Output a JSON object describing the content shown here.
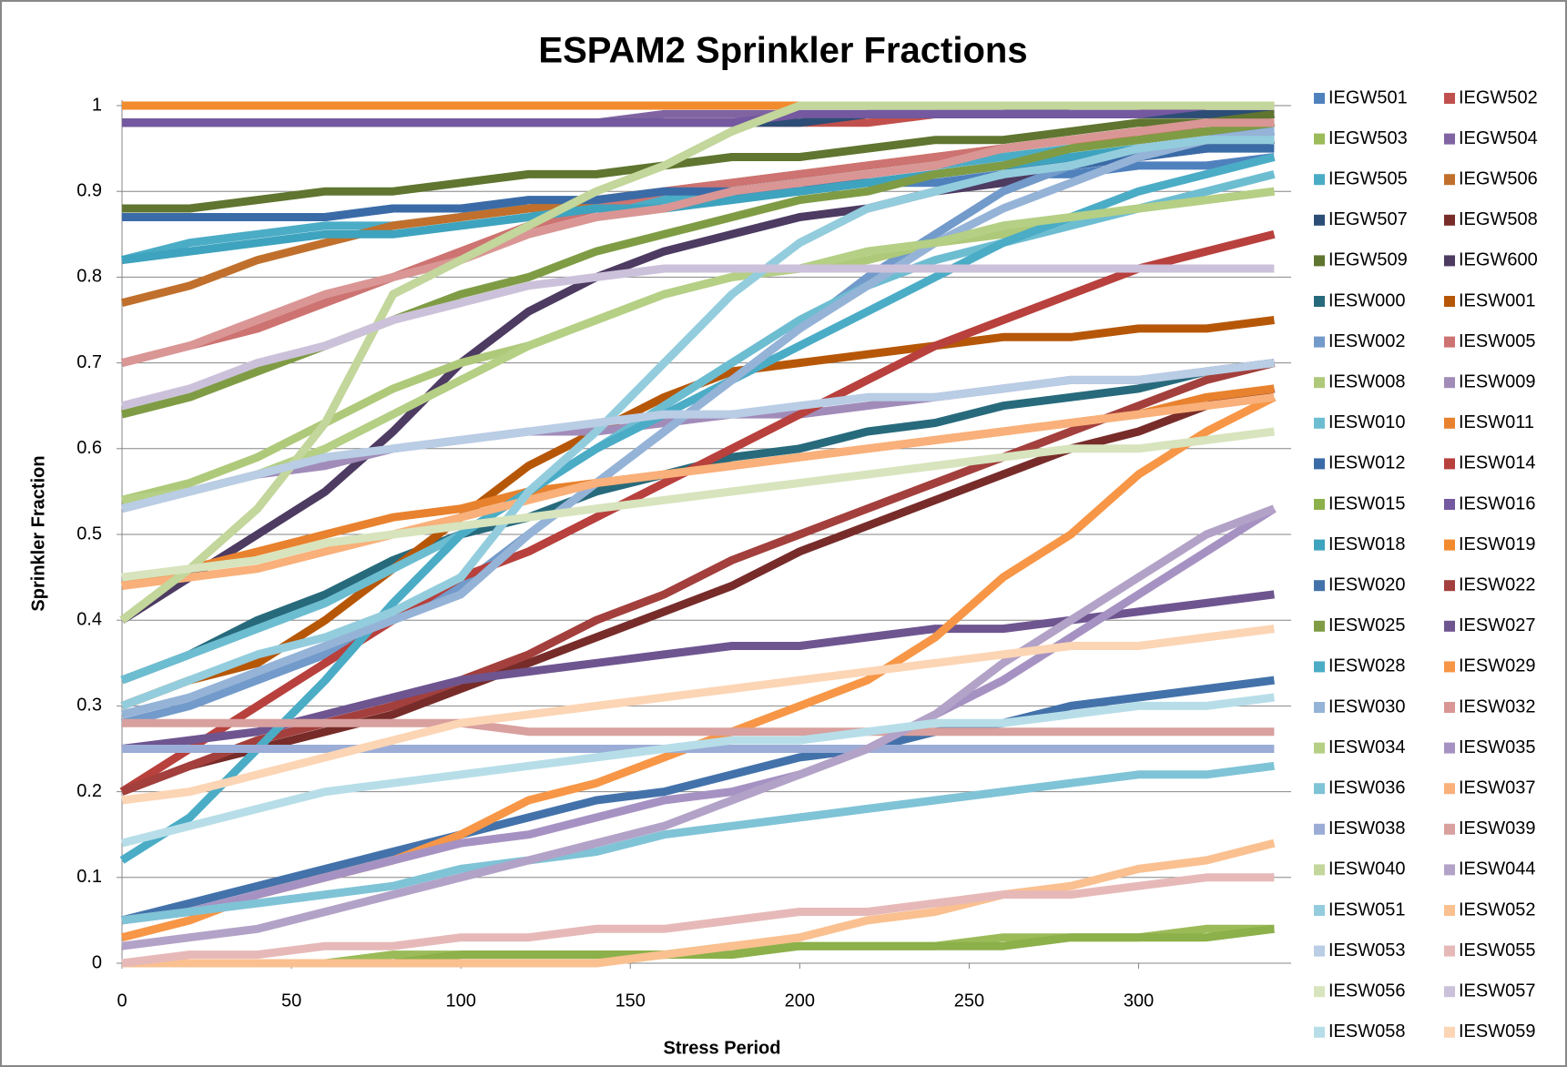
{
  "chart_data": {
    "type": "line",
    "title": "ESPAM2 Sprinkler Fractions",
    "x_label": "Stress Period",
    "y_label": "Sprinkler Fraction",
    "x": [
      0,
      20,
      40,
      60,
      80,
      100,
      120,
      140,
      160,
      180,
      200,
      220,
      240,
      260,
      280,
      300,
      320,
      340
    ],
    "xlim": [
      0,
      345
    ],
    "xticks": [
      0,
      50,
      100,
      150,
      200,
      250,
      300
    ],
    "ylim": [
      0,
      1
    ],
    "yticks": [
      0,
      0.1,
      0.2,
      0.3,
      0.4,
      0.5,
      0.6,
      0.7,
      0.8,
      0.9,
      1
    ],
    "grid": true,
    "legend": "right",
    "series": [
      {
        "name": "IEGW501",
        "color": "#4F81BD",
        "values": [
          0.87,
          0.87,
          0.87,
          0.87,
          0.88,
          0.88,
          0.88,
          0.89,
          0.89,
          0.9,
          0.9,
          0.91,
          0.91,
          0.92,
          0.92,
          0.93,
          0.93,
          0.94
        ]
      },
      {
        "name": "IEGW502",
        "color": "#C0504D",
        "values": [
          0.98,
          0.98,
          0.98,
          0.98,
          0.98,
          0.98,
          0.98,
          0.98,
          0.98,
          0.98,
          0.98,
          0.98,
          0.99,
          0.99,
          0.99,
          0.99,
          0.99,
          0.99
        ]
      },
      {
        "name": "IEGW503",
        "color": "#9BBB59",
        "values": [
          0,
          0,
          0,
          0,
          0.01,
          0.01,
          0.01,
          0.01,
          0.01,
          0.02,
          0.02,
          0.02,
          0.02,
          0.03,
          0.03,
          0.03,
          0.04,
          0.04
        ]
      },
      {
        "name": "IEGW504",
        "color": "#8064A2",
        "values": [
          0.98,
          0.98,
          0.98,
          0.98,
          0.98,
          0.98,
          0.98,
          0.98,
          0.99,
          0.99,
          0.99,
          0.99,
          0.99,
          0.99,
          1,
          1,
          1,
          1
        ]
      },
      {
        "name": "IEGW505",
        "color": "#4BACC6",
        "values": [
          0.82,
          0.84,
          0.85,
          0.86,
          0.86,
          0.87,
          0.88,
          0.88,
          0.89,
          0.9,
          0.91,
          0.92,
          0.93,
          0.94,
          0.95,
          0.96,
          0.97,
          0.97
        ]
      },
      {
        "name": "IEGW506",
        "color": "#C0702C",
        "values": [
          0.77,
          0.79,
          0.82,
          0.84,
          0.86,
          0.87,
          0.88,
          0.89,
          0.9,
          0.91,
          0.92,
          0.93,
          0.94,
          0.95,
          0.96,
          0.96,
          0.97,
          0.98
        ]
      },
      {
        "name": "IEGW507",
        "color": "#2C4D75",
        "values": [
          0.98,
          0.98,
          0.98,
          0.98,
          0.98,
          0.98,
          0.98,
          0.98,
          0.98,
          0.98,
          0.98,
          0.99,
          0.99,
          0.99,
          0.99,
          0.99,
          0.99,
          0.99
        ]
      },
      {
        "name": "IEGW508",
        "color": "#772C2A",
        "values": [
          0.2,
          0.23,
          0.25,
          0.27,
          0.29,
          0.32,
          0.35,
          0.38,
          0.41,
          0.44,
          0.48,
          0.51,
          0.54,
          0.57,
          0.6,
          0.62,
          0.65,
          0.67
        ]
      },
      {
        "name": "IEGW509",
        "color": "#5F7530",
        "values": [
          0.88,
          0.88,
          0.89,
          0.9,
          0.9,
          0.91,
          0.92,
          0.92,
          0.93,
          0.94,
          0.94,
          0.95,
          0.96,
          0.96,
          0.97,
          0.98,
          0.98,
          0.99
        ]
      },
      {
        "name": "IEGW600",
        "color": "#4D3B62",
        "values": [
          0.4,
          0.45,
          0.5,
          0.55,
          0.62,
          0.7,
          0.76,
          0.8,
          0.83,
          0.85,
          0.87,
          0.88,
          0.9,
          0.91,
          0.93,
          0.94,
          0.95,
          0.96
        ]
      },
      {
        "name": "IESW000",
        "color": "#276A7C",
        "values": [
          0.33,
          0.36,
          0.4,
          0.43,
          0.47,
          0.5,
          0.52,
          0.55,
          0.57,
          0.59,
          0.6,
          0.62,
          0.63,
          0.65,
          0.66,
          0.67,
          0.69,
          0.7
        ]
      },
      {
        "name": "IESW001",
        "color": "#B65708",
        "values": [
          0.3,
          0.33,
          0.35,
          0.4,
          0.46,
          0.52,
          0.58,
          0.62,
          0.66,
          0.69,
          0.7,
          0.71,
          0.72,
          0.73,
          0.73,
          0.74,
          0.74,
          0.75
        ]
      },
      {
        "name": "IESW002",
        "color": "#729ACA",
        "values": [
          0.28,
          0.3,
          0.33,
          0.36,
          0.4,
          0.44,
          0.5,
          0.56,
          0.62,
          0.68,
          0.74,
          0.8,
          0.85,
          0.9,
          0.93,
          0.95,
          0.96,
          0.97
        ]
      },
      {
        "name": "IESW005",
        "color": "#CD7371",
        "values": [
          0.7,
          0.72,
          0.74,
          0.77,
          0.8,
          0.83,
          0.86,
          0.88,
          0.9,
          0.91,
          0.92,
          0.93,
          0.94,
          0.95,
          0.96,
          0.97,
          0.97,
          0.98
        ]
      },
      {
        "name": "IESW008",
        "color": "#AFC97A",
        "values": [
          0.54,
          0.56,
          0.59,
          0.63,
          0.67,
          0.7,
          0.72,
          0.75,
          0.78,
          0.8,
          0.81,
          0.82,
          0.84,
          0.85,
          0.87,
          0.88,
          0.89,
          0.9
        ]
      },
      {
        "name": "IESW009",
        "color": "#A18CB9",
        "values": [
          0.53,
          0.55,
          0.57,
          0.58,
          0.6,
          0.61,
          0.62,
          0.62,
          0.63,
          0.64,
          0.64,
          0.65,
          0.66,
          0.67,
          0.68,
          0.68,
          0.69,
          0.7
        ]
      },
      {
        "name": "IESW010",
        "color": "#6DBDD1",
        "values": [
          0.33,
          0.36,
          0.39,
          0.42,
          0.46,
          0.5,
          0.55,
          0.6,
          0.65,
          0.7,
          0.75,
          0.79,
          0.82,
          0.84,
          0.86,
          0.88,
          0.9,
          0.92
        ]
      },
      {
        "name": "IESW011",
        "color": "#E8822E",
        "values": [
          0.44,
          0.46,
          0.48,
          0.5,
          0.52,
          0.53,
          0.55,
          0.56,
          0.57,
          0.58,
          0.59,
          0.6,
          0.61,
          0.62,
          0.63,
          0.64,
          0.66,
          0.67
        ]
      },
      {
        "name": "IESW012",
        "color": "#3A6BA7",
        "values": [
          0.87,
          0.87,
          0.87,
          0.87,
          0.88,
          0.88,
          0.89,
          0.89,
          0.9,
          0.9,
          0.91,
          0.91,
          0.92,
          0.93,
          0.93,
          0.94,
          0.95,
          0.95
        ]
      },
      {
        "name": "IESW014",
        "color": "#B8403D",
        "values": [
          0.2,
          0.25,
          0.3,
          0.35,
          0.4,
          0.45,
          0.48,
          0.52,
          0.56,
          0.6,
          0.64,
          0.68,
          0.72,
          0.75,
          0.78,
          0.81,
          0.83,
          0.85
        ]
      },
      {
        "name": "IESW015",
        "color": "#8CB04A",
        "values": [
          0,
          0,
          0,
          0,
          0,
          0.01,
          0.01,
          0.01,
          0.01,
          0.01,
          0.02,
          0.02,
          0.02,
          0.02,
          0.03,
          0.03,
          0.03,
          0.04
        ]
      },
      {
        "name": "IESW016",
        "color": "#7458A0",
        "values": [
          0.98,
          0.98,
          0.98,
          0.98,
          0.98,
          0.98,
          0.98,
          0.98,
          0.98,
          0.98,
          0.99,
          0.99,
          0.99,
          0.99,
          0.99,
          0.99,
          1,
          1
        ]
      },
      {
        "name": "IESW018",
        "color": "#3EA3BE",
        "values": [
          0.82,
          0.83,
          0.84,
          0.85,
          0.85,
          0.86,
          0.87,
          0.88,
          0.88,
          0.89,
          0.9,
          0.91,
          0.92,
          0.93,
          0.94,
          0.95,
          0.96,
          0.96
        ]
      },
      {
        "name": "IESW019",
        "color": "#F28A2E",
        "values": [
          1,
          1,
          1,
          1,
          1,
          1,
          1,
          1,
          1,
          1,
          1,
          1,
          1,
          1,
          1,
          1,
          1,
          1
        ]
      },
      {
        "name": "IESW020",
        "color": "#4372AA",
        "values": [
          0.05,
          0.07,
          0.09,
          0.11,
          0.13,
          0.15,
          0.17,
          0.19,
          0.2,
          0.22,
          0.24,
          0.25,
          0.27,
          0.28,
          0.3,
          0.31,
          0.32,
          0.33
        ]
      },
      {
        "name": "IESW022",
        "color": "#A33F3C",
        "values": [
          0.2,
          0.23,
          0.26,
          0.28,
          0.3,
          0.33,
          0.36,
          0.4,
          0.43,
          0.47,
          0.5,
          0.53,
          0.56,
          0.59,
          0.62,
          0.65,
          0.68,
          0.7
        ]
      },
      {
        "name": "IESW025",
        "color": "#7F9C45",
        "values": [
          0.64,
          0.66,
          0.69,
          0.72,
          0.75,
          0.78,
          0.8,
          0.83,
          0.85,
          0.87,
          0.89,
          0.9,
          0.92,
          0.93,
          0.95,
          0.96,
          0.97,
          0.98
        ]
      },
      {
        "name": "IESW027",
        "color": "#6E5590",
        "values": [
          0.25,
          0.26,
          0.27,
          0.29,
          0.31,
          0.33,
          0.34,
          0.35,
          0.36,
          0.37,
          0.37,
          0.38,
          0.39,
          0.39,
          0.4,
          0.41,
          0.42,
          0.43
        ]
      },
      {
        "name": "IESW028",
        "color": "#4BACC6",
        "values": [
          0.12,
          0.17,
          0.25,
          0.33,
          0.42,
          0.5,
          0.55,
          0.6,
          0.64,
          0.68,
          0.72,
          0.76,
          0.8,
          0.84,
          0.87,
          0.9,
          0.92,
          0.94
        ]
      },
      {
        "name": "IESW029",
        "color": "#F79646",
        "values": [
          0.03,
          0.05,
          0.08,
          0.1,
          0.12,
          0.15,
          0.19,
          0.21,
          0.24,
          0.27,
          0.3,
          0.33,
          0.38,
          0.45,
          0.5,
          0.57,
          0.62,
          0.66
        ]
      },
      {
        "name": "IESW030",
        "color": "#95B3D7",
        "values": [
          0.29,
          0.31,
          0.34,
          0.37,
          0.4,
          0.43,
          0.5,
          0.56,
          0.62,
          0.68,
          0.74,
          0.79,
          0.84,
          0.88,
          0.91,
          0.94,
          0.96,
          0.97
        ]
      },
      {
        "name": "IESW032",
        "color": "#D99694",
        "values": [
          0.7,
          0.72,
          0.75,
          0.78,
          0.8,
          0.82,
          0.85,
          0.87,
          0.88,
          0.9,
          0.91,
          0.92,
          0.93,
          0.95,
          0.96,
          0.97,
          0.98,
          0.98
        ]
      },
      {
        "name": "IESW034",
        "color": "#B5CF85",
        "values": [
          0.54,
          0.55,
          0.57,
          0.6,
          0.64,
          0.68,
          0.72,
          0.75,
          0.78,
          0.8,
          0.81,
          0.83,
          0.84,
          0.86,
          0.87,
          0.88,
          0.89,
          0.9
        ]
      },
      {
        "name": "IESW035",
        "color": "#A692C2",
        "values": [
          0.05,
          0.06,
          0.08,
          0.1,
          0.12,
          0.14,
          0.15,
          0.17,
          0.19,
          0.2,
          0.22,
          0.25,
          0.29,
          0.33,
          0.38,
          0.43,
          0.48,
          0.53
        ]
      },
      {
        "name": "IESW036",
        "color": "#7FC3D6",
        "values": [
          0.05,
          0.06,
          0.07,
          0.08,
          0.09,
          0.11,
          0.12,
          0.13,
          0.15,
          0.16,
          0.17,
          0.18,
          0.19,
          0.2,
          0.21,
          0.22,
          0.22,
          0.23
        ]
      },
      {
        "name": "IESW037",
        "color": "#F9B07A",
        "values": [
          0.44,
          0.45,
          0.46,
          0.48,
          0.5,
          0.52,
          0.54,
          0.56,
          0.57,
          0.58,
          0.59,
          0.6,
          0.61,
          0.62,
          0.63,
          0.64,
          0.65,
          0.66
        ]
      },
      {
        "name": "IESW038",
        "color": "#9BADD6",
        "values": [
          0.25,
          0.25,
          0.25,
          0.25,
          0.25,
          0.25,
          0.25,
          0.25,
          0.25,
          0.25,
          0.25,
          0.25,
          0.25,
          0.25,
          0.25,
          0.25,
          0.25,
          0.25
        ]
      },
      {
        "name": "IESW039",
        "color": "#D8A09E",
        "values": [
          0.28,
          0.28,
          0.28,
          0.28,
          0.28,
          0.28,
          0.27,
          0.27,
          0.27,
          0.27,
          0.27,
          0.27,
          0.27,
          0.27,
          0.27,
          0.27,
          0.27,
          0.27
        ]
      },
      {
        "name": "IESW040",
        "color": "#C3D69B",
        "values": [
          0.4,
          0.46,
          0.53,
          0.63,
          0.78,
          0.82,
          0.86,
          0.9,
          0.93,
          0.97,
          1,
          1,
          1,
          1,
          1,
          1,
          1,
          1
        ]
      },
      {
        "name": "IESW044",
        "color": "#B3A2C7",
        "values": [
          0.02,
          0.03,
          0.04,
          0.06,
          0.08,
          0.1,
          0.12,
          0.14,
          0.16,
          0.19,
          0.22,
          0.25,
          0.29,
          0.35,
          0.4,
          0.45,
          0.5,
          0.53
        ]
      },
      {
        "name": "IESW051",
        "color": "#93CDDD",
        "values": [
          0.3,
          0.33,
          0.36,
          0.38,
          0.41,
          0.45,
          0.55,
          0.62,
          0.7,
          0.78,
          0.84,
          0.88,
          0.9,
          0.92,
          0.93,
          0.95,
          0.96,
          0.96
        ]
      },
      {
        "name": "IESW052",
        "color": "#FAC090",
        "values": [
          0,
          0,
          0,
          0,
          0,
          0,
          0,
          0,
          0.01,
          0.02,
          0.03,
          0.05,
          0.06,
          0.08,
          0.09,
          0.11,
          0.12,
          0.14
        ]
      },
      {
        "name": "IESW053",
        "color": "#B9CDE5",
        "values": [
          0.53,
          0.55,
          0.57,
          0.59,
          0.6,
          0.61,
          0.62,
          0.63,
          0.64,
          0.64,
          0.65,
          0.66,
          0.66,
          0.67,
          0.68,
          0.68,
          0.69,
          0.7
        ]
      },
      {
        "name": "IESW055",
        "color": "#E6B9B8",
        "values": [
          0,
          0.01,
          0.01,
          0.02,
          0.02,
          0.03,
          0.03,
          0.04,
          0.04,
          0.05,
          0.06,
          0.06,
          0.07,
          0.08,
          0.08,
          0.09,
          0.1,
          0.1
        ]
      },
      {
        "name": "IESW056",
        "color": "#D7E4BD",
        "values": [
          0.45,
          0.46,
          0.47,
          0.49,
          0.5,
          0.51,
          0.52,
          0.53,
          0.54,
          0.55,
          0.56,
          0.57,
          0.58,
          0.59,
          0.6,
          0.6,
          0.61,
          0.62
        ]
      },
      {
        "name": "IESW057",
        "color": "#CCC1DA",
        "values": [
          0.65,
          0.67,
          0.7,
          0.72,
          0.75,
          0.77,
          0.79,
          0.8,
          0.81,
          0.81,
          0.81,
          0.81,
          0.81,
          0.81,
          0.81,
          0.81,
          0.81,
          0.81
        ]
      },
      {
        "name": "IESW058",
        "color": "#B7DEE8",
        "values": [
          0.14,
          0.16,
          0.18,
          0.2,
          0.21,
          0.22,
          0.23,
          0.24,
          0.25,
          0.26,
          0.26,
          0.27,
          0.28,
          0.28,
          0.29,
          0.3,
          0.3,
          0.31
        ]
      },
      {
        "name": "IESW059",
        "color": "#FCD5B5",
        "values": [
          0.19,
          0.2,
          0.22,
          0.24,
          0.26,
          0.28,
          0.29,
          0.3,
          0.31,
          0.32,
          0.33,
          0.34,
          0.35,
          0.36,
          0.37,
          0.37,
          0.38,
          0.39
        ]
      }
    ]
  }
}
